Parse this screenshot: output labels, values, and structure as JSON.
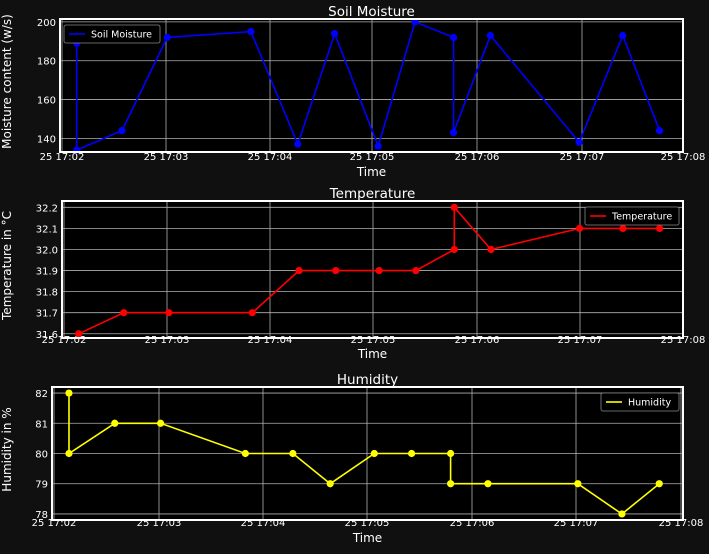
{
  "theme": {
    "figure_bg": "#101010",
    "axes_bg": "#000000",
    "frame": "#ffffff",
    "grid": "#b0b0b0",
    "text": "#ffffff"
  },
  "chart_data": [
    {
      "type": "line",
      "title": "Soil Moisture",
      "xlabel": "Time",
      "ylabel": "Moisture content (w/s)",
      "legend_position": "top-left",
      "grid": true,
      "x_tick_labels": [
        "25 17:02",
        "25 17:03",
        "25 17:04",
        "25 17:05",
        "25 17:06",
        "25 17:07",
        "25 17:08"
      ],
      "y_ticks": [
        140,
        160,
        180,
        200
      ],
      "ylim": [
        133,
        201.5
      ],
      "xlim": [
        "17:01:54",
        "17:08:06"
      ],
      "series": [
        {
          "name": "Soil Moisture",
          "color": "#0000ff",
          "x": [
            "17:02:04",
            "17:02:04",
            "17:02:31",
            "17:02:58",
            "17:03:48",
            "17:04:16",
            "17:04:38",
            "17:05:04",
            "17:05:26",
            "17:05:49",
            "17:05:49",
            "17:06:11",
            "17:07:04",
            "17:07:30",
            "17:07:52"
          ],
          "values": [
            189,
            134,
            144,
            192,
            195,
            137,
            194,
            136,
            200,
            192,
            143,
            193,
            138,
            193,
            144
          ]
        }
      ]
    },
    {
      "type": "line",
      "title": "Temperature",
      "xlabel": "Time",
      "ylabel": "Temperature in °C",
      "legend_position": "top-right",
      "grid": true,
      "x_tick_labels": [
        "25 17:02",
        "25 17:03",
        "25 17:04",
        "25 17:05",
        "25 17:06",
        "25 17:07",
        "25 17:08"
      ],
      "y_ticks": [
        31.6,
        31.7,
        31.8,
        31.9,
        32.0,
        32.1,
        32.2
      ],
      "y_tick_labels": [
        "31.6",
        "31.7",
        "31.8",
        "31.9",
        "32.0",
        "32.1",
        "32.2"
      ],
      "ylim": [
        31.58,
        32.23
      ],
      "xlim": [
        "17:01:54",
        "17:08:06"
      ],
      "series": [
        {
          "name": "Temperature",
          "color": "#ff0000",
          "x": [
            "17:02:04",
            "17:02:31",
            "17:02:58",
            "17:03:48",
            "17:04:16",
            "17:04:38",
            "17:05:04",
            "17:05:26",
            "17:05:49",
            "17:05:49",
            "17:06:11",
            "17:07:04",
            "17:07:30",
            "17:07:52"
          ],
          "values": [
            31.6,
            31.7,
            31.7,
            31.7,
            31.9,
            31.9,
            31.9,
            31.9,
            32.0,
            32.2,
            32.0,
            32.1,
            32.1,
            32.1
          ]
        }
      ]
    },
    {
      "type": "line",
      "title": "Humidity",
      "xlabel": "Time",
      "ylabel": "Humidity in %",
      "legend_position": "top-right",
      "grid": true,
      "x_tick_labels": [
        "25 17:02",
        "25 17:03",
        "25 17:04",
        "25 17:05",
        "25 17:06",
        "25 17:07",
        "25 17:08"
      ],
      "y_ticks": [
        78,
        79,
        80,
        81,
        82
      ],
      "ylim": [
        77.8,
        82.2
      ],
      "xlim": [
        "17:01:54",
        "17:08:06"
      ],
      "series": [
        {
          "name": "Humidity",
          "color": "#ffff00",
          "x": [
            "17:02:04",
            "17:02:04",
            "17:02:31",
            "17:02:58",
            "17:03:48",
            "17:04:16",
            "17:04:38",
            "17:05:04",
            "17:05:26",
            "17:05:49",
            "17:05:49",
            "17:06:11",
            "17:07:04",
            "17:07:30",
            "17:07:52"
          ],
          "values": [
            82,
            80,
            81,
            81,
            80,
            80,
            79,
            80,
            80,
            80,
            79,
            79,
            79,
            78,
            79
          ]
        }
      ]
    }
  ]
}
